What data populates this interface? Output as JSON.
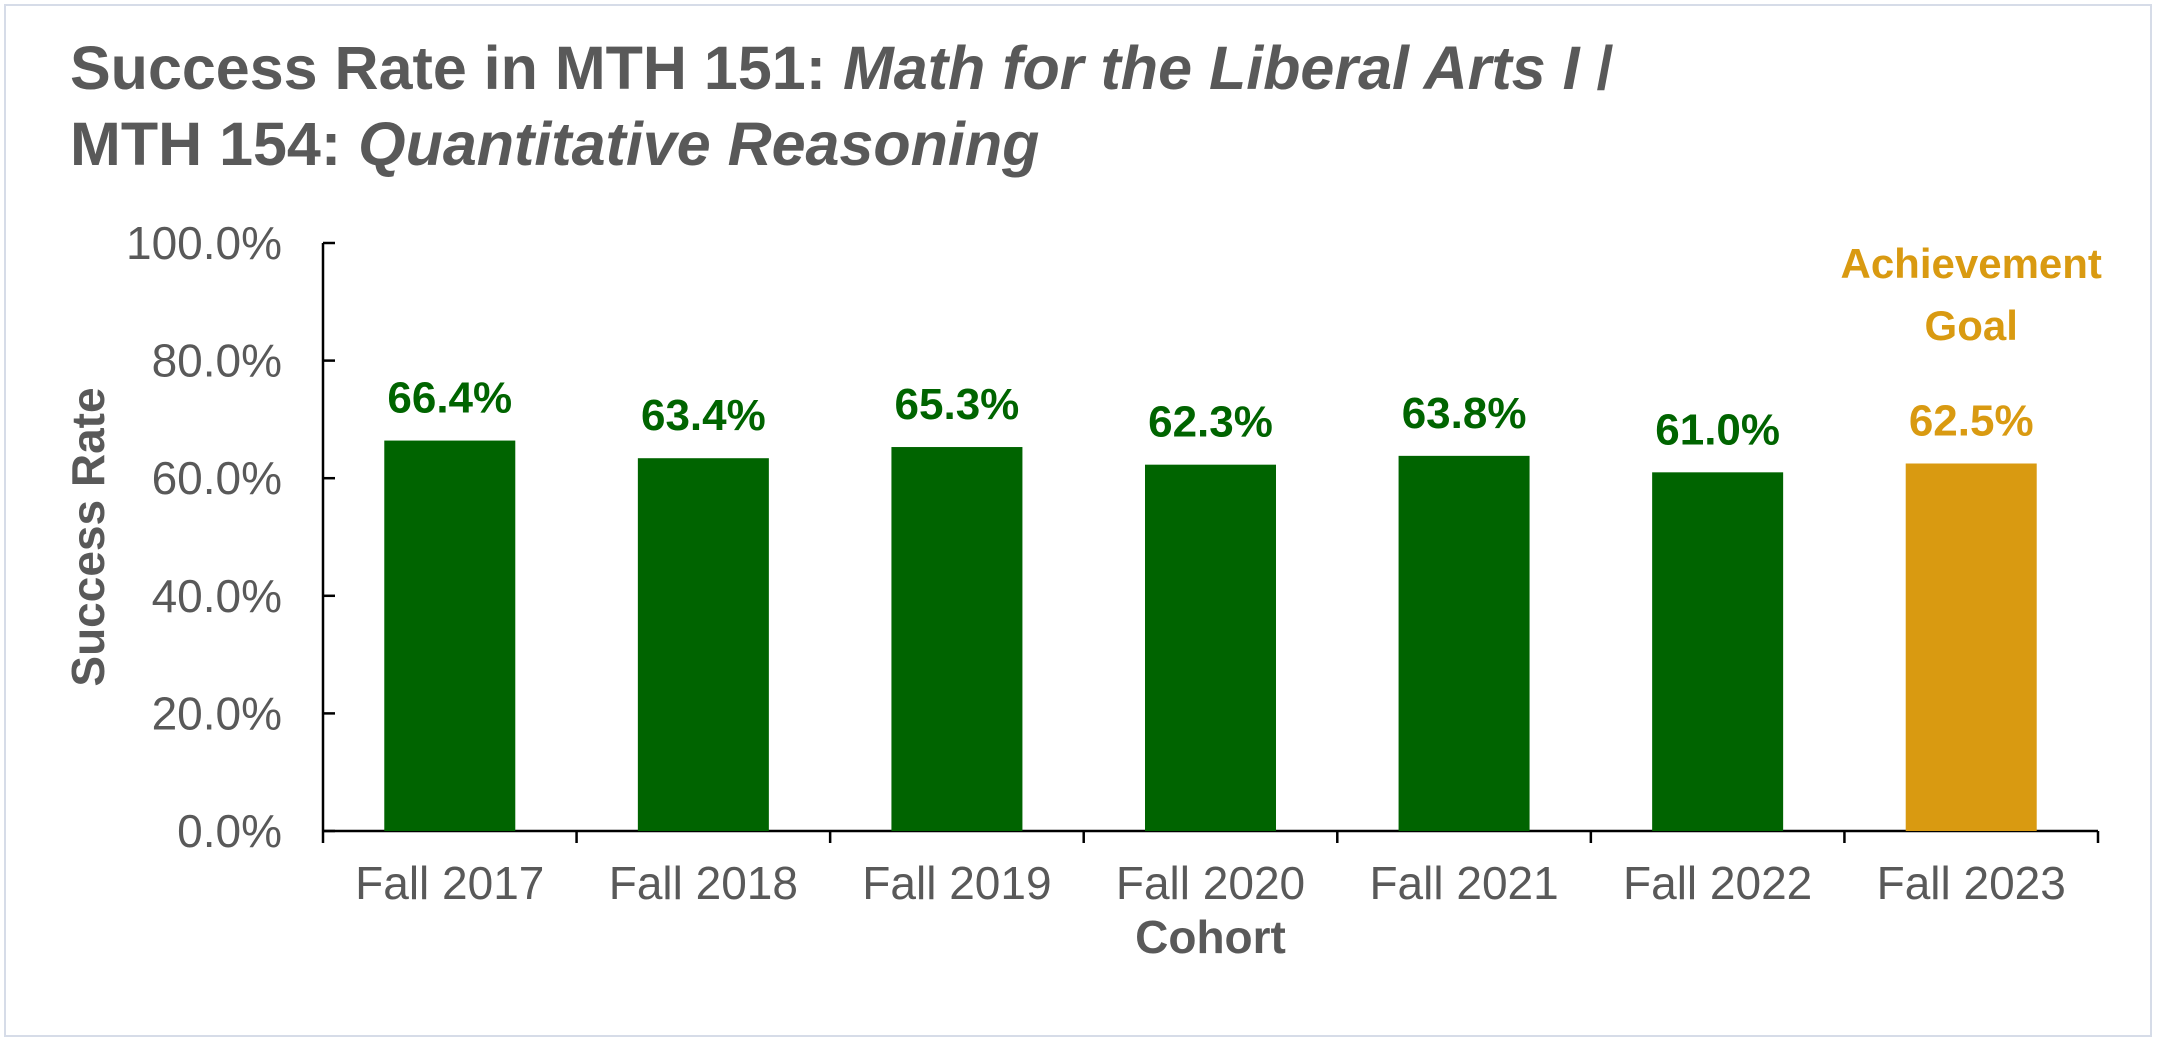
{
  "chart_data": {
    "type": "bar",
    "title_line1_prefix": "Success Rate in MTH 151: ",
    "title_line1_italic": "Math for the Liberal Arts I",
    "title_line1_suffix": " /",
    "title_line2_prefix": "MTH 154: ",
    "title_line2_italic": "Quantitative Reasoning",
    "xlabel": "Cohort",
    "ylabel": "Success Rate",
    "ylim": [
      0,
      100
    ],
    "yticks": [
      "0.0%",
      "20.0%",
      "40.0%",
      "60.0%",
      "80.0%",
      "100.0%"
    ],
    "ytick_values": [
      0,
      20,
      40,
      60,
      80,
      100
    ],
    "grid": false,
    "categories": [
      "Fall 2017",
      "Fall 2018",
      "Fall 2019",
      "Fall 2020",
      "Fall 2021",
      "Fall 2022",
      "Fall 2023"
    ],
    "values": [
      66.4,
      63.4,
      65.3,
      62.3,
      63.8,
      61.0,
      62.5
    ],
    "data_labels": [
      "66.4%",
      "63.4%",
      "65.3%",
      "62.3%",
      "63.8%",
      "61.0%",
      "62.5%"
    ],
    "bar_colors": [
      "#006400",
      "#006400",
      "#006400",
      "#006400",
      "#006400",
      "#006400",
      "#d99a11"
    ],
    "label_colors": [
      "#006400",
      "#006400",
      "#006400",
      "#006400",
      "#006400",
      "#006400",
      "#d99a11"
    ],
    "annotation": "Achievement Goal",
    "annotation_lines": [
      "Achievement",
      "Goal"
    ],
    "annotation_color": "#d99a11",
    "text_color": "#595959"
  }
}
